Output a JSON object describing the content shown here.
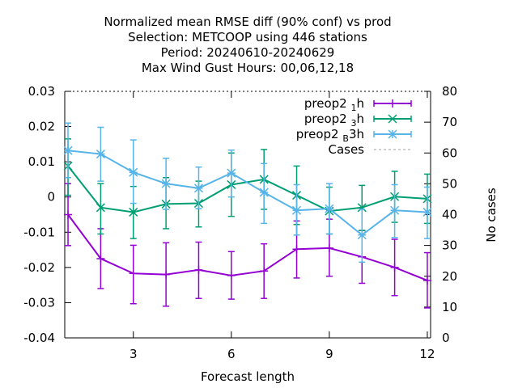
{
  "chart_data": {
    "type": "line",
    "title_lines": [
      "Normalized mean RMSE diff (90% conf) vs prod",
      "Selection: METCOOP using   446 stations",
      "Period: 20240610-20240629",
      "Max Wind Gust   Hours:  00,06,12,18"
    ],
    "xlabel": "Forecast length",
    "ylabel_right": "No cases",
    "xlim": [
      0.9,
      12.1
    ],
    "ylim": [
      -0.04,
      0.03
    ],
    "y2lim": [
      0,
      80
    ],
    "x_ticks": [
      3,
      6,
      9,
      12
    ],
    "y_ticks": [
      -0.04,
      -0.03,
      -0.02,
      -0.01,
      0,
      0.01,
      0.02,
      0.03
    ],
    "y_tick_labels": [
      "-0.04",
      "-0.03",
      "-0.02",
      "-0.01",
      "0",
      "0.01",
      "0.02",
      "0.03"
    ],
    "y2_ticks": [
      0,
      10,
      20,
      30,
      40,
      50,
      60,
      70,
      80
    ],
    "grid": "dotted top border",
    "legend_position": "top-right",
    "series": [
      {
        "name": "preop2 1h",
        "legend_main": "preop2",
        "legend_sub": "1",
        "legend_tail": "h",
        "color": "#9400d3",
        "marker": "plus",
        "x": [
          1,
          2,
          3,
          4,
          5,
          6,
          7,
          8,
          9,
          10,
          11,
          12
        ],
        "y": [
          -0.005,
          -0.0175,
          -0.0217,
          -0.022,
          -0.0207,
          -0.0223,
          -0.021,
          -0.0148,
          -0.0145,
          -0.017,
          -0.02,
          -0.0237
        ],
        "err_low": [
          -0.0138,
          -0.026,
          -0.0303,
          -0.031,
          -0.0288,
          -0.029,
          -0.0288,
          -0.023,
          -0.0225,
          -0.0245,
          -0.028,
          -0.0315
        ],
        "err_high": [
          0.0038,
          -0.009,
          -0.0137,
          -0.013,
          -0.0128,
          -0.0155,
          -0.0133,
          -0.0068,
          -0.0063,
          -0.0095,
          -0.012,
          -0.0158
        ]
      },
      {
        "name": "preop2 3h",
        "legend_main": "preop2",
        "legend_sub": "3",
        "legend_tail": "h",
        "color": "#009e73",
        "marker": "cross",
        "x": [
          1,
          2,
          3,
          4,
          5,
          6,
          7,
          8,
          9,
          10,
          11,
          12
        ],
        "y": [
          0.0088,
          -0.003,
          -0.0043,
          -0.002,
          -0.0018,
          0.0035,
          0.005,
          0.0005,
          -0.004,
          -0.003,
          0.0001,
          -0.0005
        ],
        "err_low": [
          0.0005,
          -0.0105,
          -0.0118,
          -0.009,
          -0.0085,
          -0.0055,
          -0.0035,
          -0.0078,
          -0.0105,
          -0.0095,
          -0.0072,
          -0.0075
        ],
        "err_high": [
          0.0165,
          0.0038,
          0.003,
          0.0055,
          0.0045,
          0.0125,
          0.0135,
          0.0088,
          0.0028,
          0.0033,
          0.0073,
          0.0065
        ]
      },
      {
        "name": "preop2 B3h",
        "legend_main": "preop2",
        "legend_sub": "B",
        "legend_tail": "3h",
        "color": "#56b4e9",
        "marker": "star",
        "x": [
          1,
          2,
          3,
          4,
          5,
          6,
          7,
          8,
          9,
          10,
          11,
          12
        ],
        "y": [
          0.0132,
          0.0122,
          0.007,
          0.0038,
          0.0025,
          0.0068,
          0.0013,
          -0.0038,
          -0.0033,
          -0.0108,
          -0.0038,
          -0.0043
        ],
        "err_low": [
          0.0055,
          0.0045,
          -0.0018,
          -0.0035,
          -0.0033,
          0.0,
          -0.0075,
          -0.0108,
          -0.0105,
          -0.0185,
          -0.0115,
          -0.0118
        ],
        "err_high": [
          0.021,
          0.0198,
          0.0162,
          0.011,
          0.0085,
          0.0133,
          0.0095,
          0.0035,
          0.0038,
          -0.0035,
          0.0035,
          0.0028
        ]
      },
      {
        "name": "Cases",
        "legend_main": "Cases",
        "legend_sub": "",
        "legend_tail": "",
        "color": "#a0a0a0",
        "marker": "none",
        "dashed": true
      }
    ]
  }
}
